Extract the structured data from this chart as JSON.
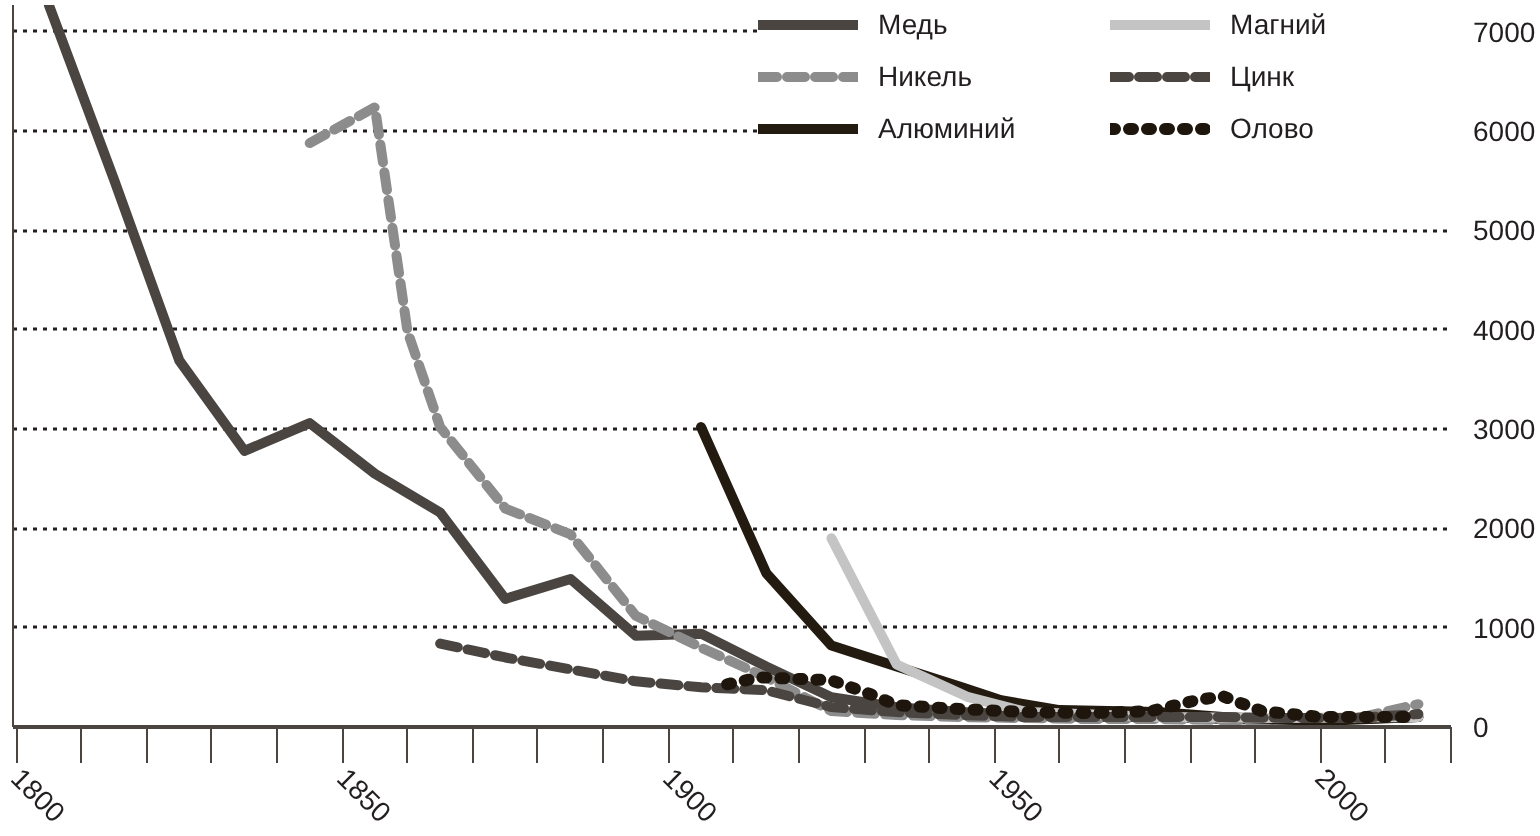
{
  "chart_data": {
    "type": "line",
    "xlim": [
      1799.5,
      2020
    ],
    "ylim": [
      0,
      7270
    ],
    "xticks": [
      1800,
      1850,
      1900,
      1950,
      2000
    ],
    "yticks": [
      0,
      1000,
      2000,
      3000,
      4000,
      5000,
      6000,
      7000
    ],
    "grid": "y",
    "legend": "top right",
    "series": [
      {
        "name": "Медь",
        "color": "#4a4541",
        "line_style": "solid",
        "x": [
          1805,
          1815,
          1825,
          1835,
          1845,
          1855,
          1865,
          1875,
          1885,
          1895,
          1905,
          1915,
          1925,
          1935,
          1945,
          1955,
          1965,
          1975,
          1985,
          1995,
          2005,
          2015
        ],
        "values": [
          7270,
          5510,
          3690,
          2780,
          3060,
          2550,
          2160,
          1290,
          1490,
          920,
          940,
          610,
          300,
          200,
          150,
          120,
          100,
          100,
          80,
          70,
          80,
          100
        ]
      },
      {
        "name": "Никель",
        "color": "#8c8c8c",
        "line_style": "dashed",
        "x": [
          1845,
          1855,
          1860,
          1865,
          1875,
          1885,
          1895,
          1905,
          1915,
          1925,
          1935,
          1945,
          1955,
          1965,
          1975,
          1985,
          1995,
          2005,
          2015
        ],
        "values": [
          5880,
          6240,
          3980,
          3020,
          2200,
          1940,
          1120,
          800,
          500,
          160,
          120,
          100,
          90,
          80,
          80,
          70,
          60,
          80,
          230
        ]
      },
      {
        "name": "Алюминий",
        "color": "#231a10",
        "line_style": "solid",
        "x": [
          1905,
          1915,
          1925,
          1935,
          1945,
          1951,
          1960,
          1975,
          1985,
          2000,
          2015
        ],
        "values": [
          3020,
          1550,
          820,
          610,
          400,
          270,
          170,
          150,
          100,
          60,
          100
        ]
      },
      {
        "name": "Магний",
        "color": "#c4c4c4",
        "line_style": "solid",
        "x": [
          1925,
          1935,
          1946,
          1955,
          1975,
          1995,
          2015
        ],
        "values": [
          1900,
          630,
          300,
          150,
          100,
          90,
          100
        ]
      },
      {
        "name": "Цинк",
        "color": "#4a4541",
        "line_style": "dashed",
        "x": [
          1865,
          1875,
          1885,
          1895,
          1905,
          1915,
          1925,
          1935,
          1945,
          1955,
          1965,
          1975,
          1985,
          1995,
          2005,
          2015
        ],
        "values": [
          840,
          700,
          580,
          460,
          400,
          370,
          200,
          150,
          120,
          100,
          100,
          100,
          100,
          90,
          90,
          130
        ]
      },
      {
        "name": "Олово",
        "color": "#1e160c",
        "line_style": "dotted",
        "x": [
          1909,
          1914,
          1925,
          1931,
          1935,
          1945,
          1955,
          1965,
          1974,
          1981,
          1985,
          1991,
          2000,
          2015
        ],
        "values": [
          430,
          500,
          470,
          330,
          220,
          180,
          150,
          140,
          160,
          270,
          310,
          160,
          100,
          100
        ]
      }
    ]
  }
}
